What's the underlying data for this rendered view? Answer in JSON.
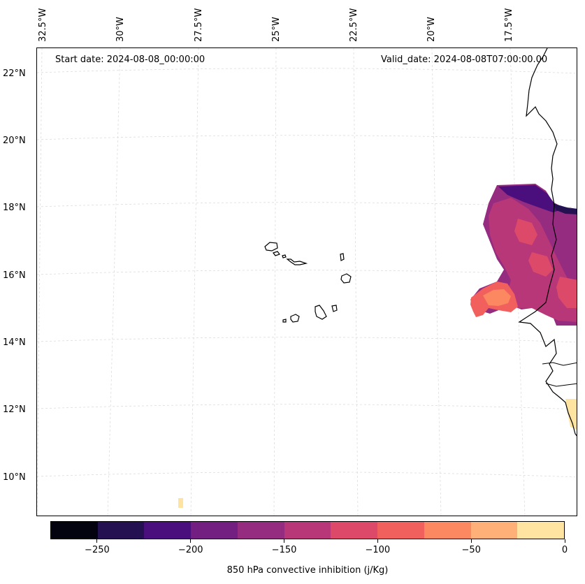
{
  "annotations": {
    "start_date": "Start date: 2024-08-08_00:00:00",
    "valid_date": "Valid_date: 2024-08-08T07:00:00.00"
  },
  "longitude_labels": [
    "32.5°W",
    "30°W",
    "27.5°W",
    "25°W",
    "22.5°W",
    "20°W",
    "17.5°W"
  ],
  "latitude_labels": [
    "22°N",
    "20°N",
    "18°N",
    "16°N",
    "14°N",
    "12°N",
    "10°N"
  ],
  "colorbar": {
    "title": "850 hPa convective inhibition (j/Kg)",
    "tick_labels": [
      "−250",
      "−200",
      "−150",
      "−100",
      "−50",
      "0"
    ],
    "colors": [
      "#03030f",
      "#231151",
      "#4a0f7c",
      "#721f81",
      "#962c80",
      "#b73779",
      "#dd4a69",
      "#f1605d",
      "#fb8861",
      "#feb078",
      "#fee4a0"
    ]
  }
}
